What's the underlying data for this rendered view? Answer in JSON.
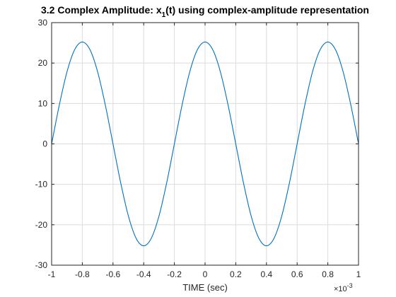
{
  "chart_data": {
    "type": "line",
    "title": {
      "prefix": "3.2 Complex Amplitude: x",
      "subscript": "1",
      "suffix": "(t) using complex-amplitude representation"
    },
    "xlabel": "TIME (sec)",
    "x_exponent": {
      "base": "×10",
      "power": "-3"
    },
    "xlim": [
      -1,
      1
    ],
    "ylim": [
      -30,
      30
    ],
    "xticks": [
      -1,
      -0.8,
      -0.6,
      -0.4,
      -0.2,
      0,
      0.2,
      0.4,
      0.6,
      0.8,
      1
    ],
    "xtick_labels": [
      "-1",
      "-0.8",
      "-0.6",
      "-0.4",
      "-0.2",
      "0",
      "0.2",
      "0.4",
      "0.6",
      "0.8",
      "1"
    ],
    "yticks": [
      -30,
      -20,
      -10,
      0,
      10,
      20,
      30
    ],
    "ytick_labels": [
      "-30",
      "-20",
      "-10",
      "0",
      "10",
      "20",
      "30"
    ],
    "grid": true,
    "series": [
      {
        "color": "#0072BD",
        "x": [
          -1,
          -0.95,
          -0.9,
          -0.85,
          -0.8,
          -0.75,
          -0.7,
          -0.65,
          -0.6,
          -0.55,
          -0.5,
          -0.45,
          -0.4,
          -0.35,
          -0.3,
          -0.25,
          -0.2,
          -0.15,
          -0.1,
          -0.05,
          0,
          0.05,
          0.1,
          0.15,
          0.2,
          0.25,
          0.3,
          0.35,
          0.4,
          0.45,
          0.5,
          0.55,
          0.6,
          0.65,
          0.7,
          0.75,
          0.8,
          0.85,
          0.9,
          0.95,
          1
        ],
        "y": [
          0,
          9.6,
          17.8,
          23.3,
          25.2,
          23.3,
          17.8,
          9.6,
          0,
          -9.6,
          -17.8,
          -23.3,
          -25.2,
          -23.3,
          -17.8,
          -9.6,
          0,
          9.6,
          17.8,
          23.3,
          25.2,
          23.3,
          17.8,
          9.6,
          0,
          -9.6,
          -17.8,
          -23.3,
          -25.2,
          -23.3,
          -17.8,
          -9.6,
          0,
          9.6,
          17.8,
          23.3,
          25.2,
          23.3,
          17.8,
          9.6,
          0
        ]
      }
    ]
  }
}
